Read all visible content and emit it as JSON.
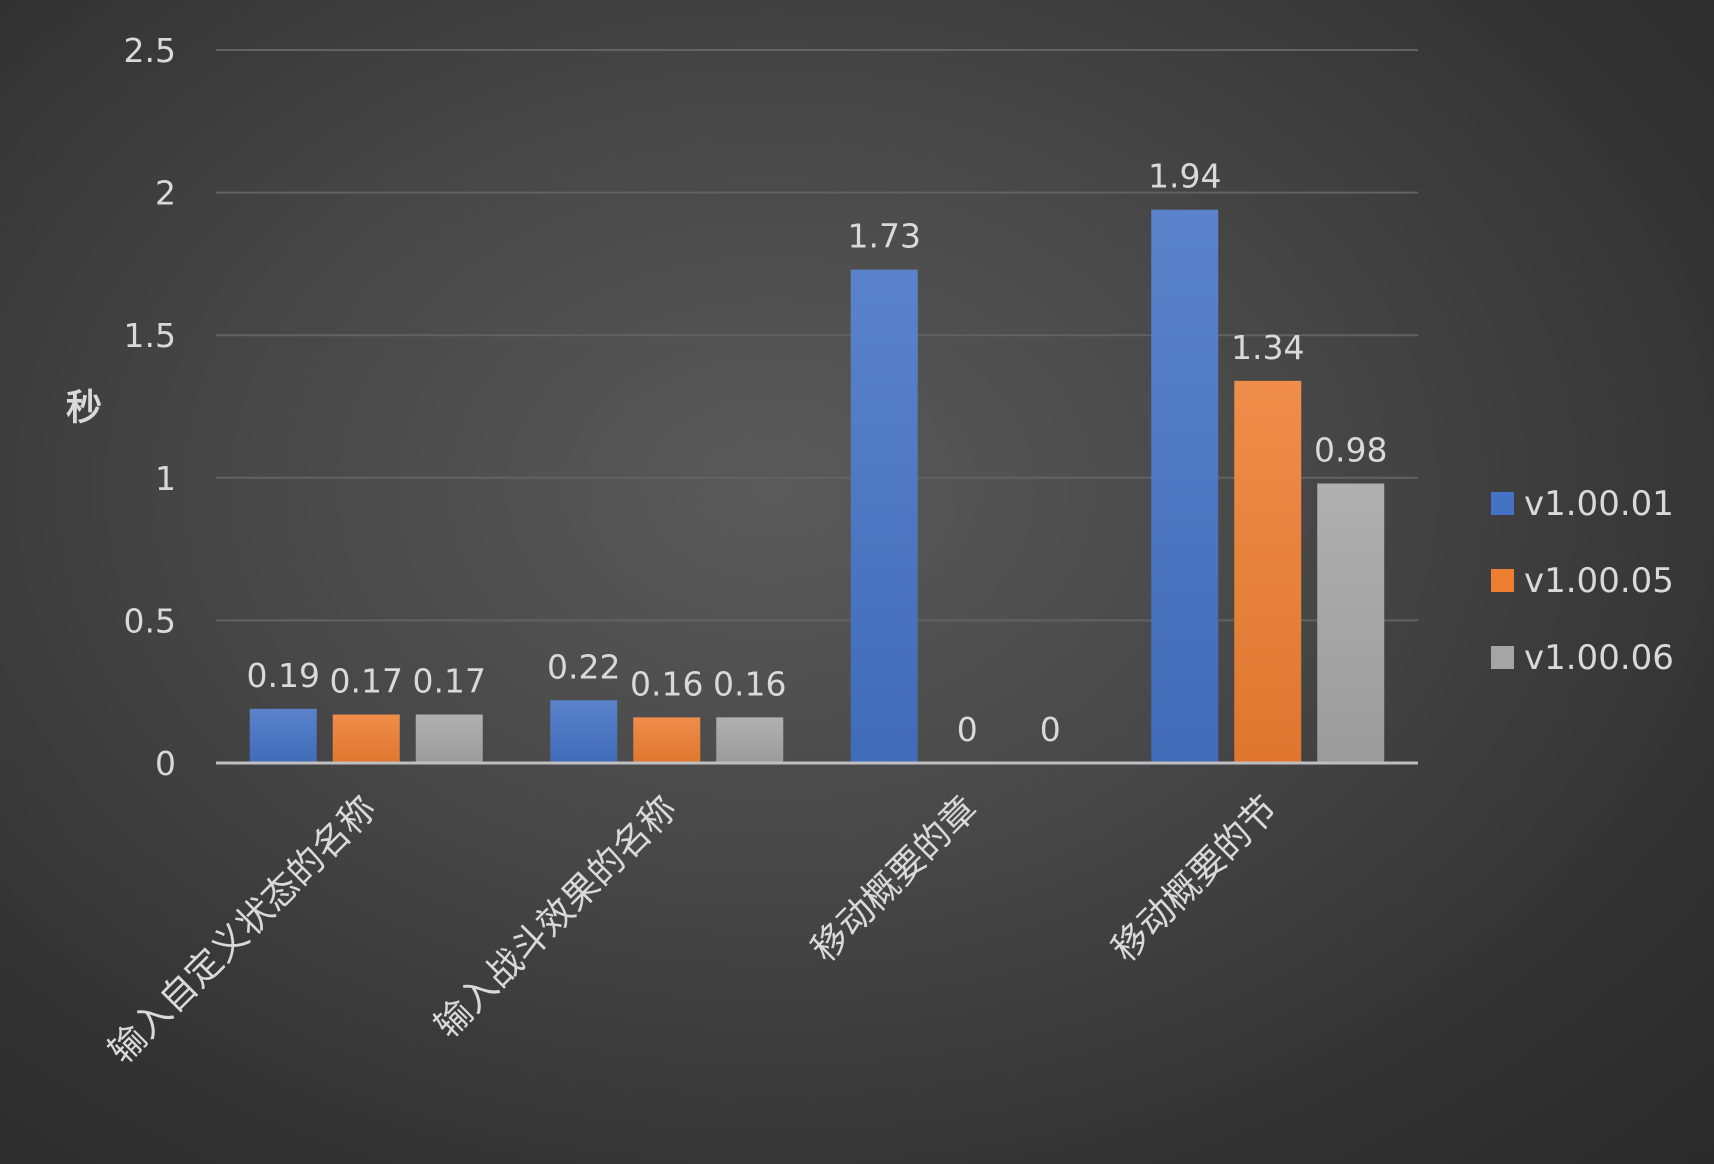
{
  "chart_data": {
    "type": "bar",
    "title": "",
    "xlabel": "",
    "ylabel": "秒",
    "ylim": [
      0,
      2.5
    ],
    "yticks": [
      "0",
      "0.5",
      "1",
      "1.5",
      "2",
      "2.5"
    ],
    "ytick_values": [
      0,
      0.5,
      1,
      1.5,
      2,
      2.5
    ],
    "grid": true,
    "legend_position": "right",
    "categories": [
      "输入自定义状态的名称",
      "输入战斗效果的名称",
      "移动概要的章",
      "移动概要的节"
    ],
    "series": [
      {
        "name": "v1.00.01",
        "color": "#4472c4",
        "values": [
          0.19,
          0.22,
          1.73,
          1.94
        ],
        "labels": [
          "0.19",
          "0.22",
          "1.73",
          "1.94"
        ]
      },
      {
        "name": "v1.00.05",
        "color": "#ed7d31",
        "values": [
          0.17,
          0.16,
          0,
          1.34
        ],
        "labels": [
          "0.17",
          "0.16",
          "0",
          "1.34"
        ]
      },
      {
        "name": "v1.00.06",
        "color": "#a5a5a5",
        "values": [
          0.17,
          0.16,
          0,
          0.98
        ],
        "labels": [
          "0.17",
          "0.16",
          "0",
          "0.98"
        ]
      }
    ]
  }
}
